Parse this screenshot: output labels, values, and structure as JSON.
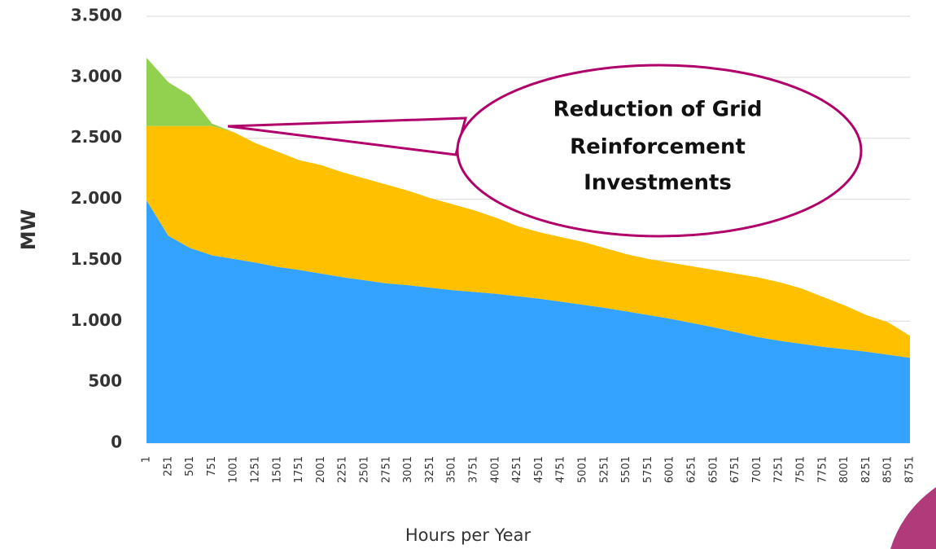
{
  "chart_data": {
    "type": "stacked_area",
    "annotation": [
      "Reduction of Grid",
      "Reinforcement",
      "Investments"
    ],
    "xlabel": "Hours per Year",
    "ylabel": "MW",
    "categories": [
      "1",
      "251",
      "501",
      "751",
      "1001",
      "1251",
      "1501",
      "1751",
      "2001",
      "2251",
      "2501",
      "2751",
      "3001",
      "3251",
      "3501",
      "3751",
      "4001",
      "4251",
      "4501",
      "4751",
      "5001",
      "5251",
      "5501",
      "5751",
      "6001",
      "6251",
      "6501",
      "6751",
      "7001",
      "7251",
      "7501",
      "7751",
      "8001",
      "8251",
      "8501",
      "8751"
    ],
    "series": [
      {
        "color": "#33a3ff",
        "values": [
          1990,
          1700,
          1600,
          1540,
          1510,
          1480,
          1445,
          1420,
          1390,
          1360,
          1335,
          1310,
          1295,
          1275,
          1255,
          1240,
          1225,
          1205,
          1185,
          1160,
          1135,
          1110,
          1080,
          1050,
          1020,
          985,
          950,
          910,
          870,
          840,
          815,
          790,
          770,
          750,
          725,
          700
        ]
      },
      {
        "color": "#ffc000",
        "values": [
          610,
          900,
          1000,
          1060,
          1040,
          980,
          945,
          900,
          890,
          860,
          835,
          810,
          775,
          735,
          705,
          670,
          625,
          575,
          545,
          530,
          515,
          490,
          470,
          460,
          460,
          465,
          470,
          480,
          490,
          480,
          455,
          410,
          360,
          300,
          265,
          180
        ]
      },
      {
        "color": "#92d050",
        "values": [
          560,
          360,
          250,
          20,
          0,
          0,
          0,
          0,
          0,
          0,
          0,
          0,
          0,
          0,
          0,
          0,
          0,
          0,
          0,
          0,
          0,
          0,
          0,
          0,
          0,
          0,
          0,
          0,
          0,
          0,
          0,
          0,
          0,
          0,
          0,
          0
        ]
      }
    ],
    "ylim": [
      0,
      3500
    ],
    "yticks": [
      0,
      500,
      {
        "value": 1000,
        "label": "1.000"
      },
      {
        "value": 1500,
        "label": "1.500"
      },
      {
        "value": 2000,
        "label": "2.000"
      },
      {
        "value": 2500,
        "label": "2.500"
      },
      {
        "value": 3000,
        "label": "3.000"
      },
      {
        "value": 3500,
        "label": "3.500"
      }
    ],
    "grid": true
  }
}
